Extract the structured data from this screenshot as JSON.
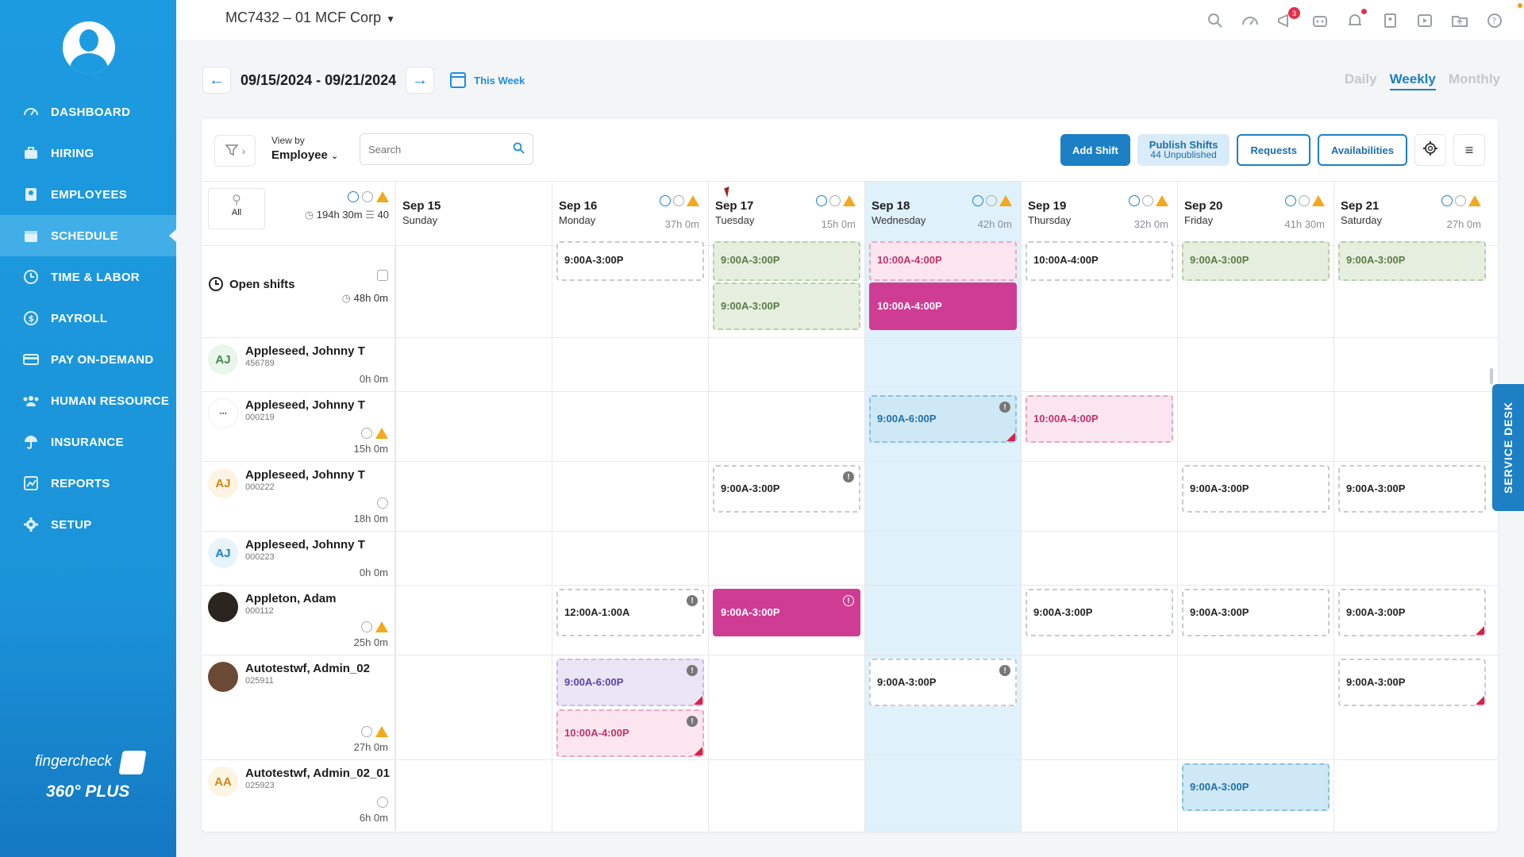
{
  "sidebar": {
    "items": [
      {
        "label": "DASHBOARD",
        "icon": "dashboard-icon"
      },
      {
        "label": "HIRING",
        "icon": "briefcase-icon"
      },
      {
        "label": "EMPLOYEES",
        "icon": "id-card-icon"
      },
      {
        "label": "SCHEDULE",
        "icon": "calendar-icon",
        "active": true
      },
      {
        "label": "TIME & LABOR",
        "icon": "clock-icon"
      },
      {
        "label": "PAYROLL",
        "icon": "dollar-icon"
      },
      {
        "label": "PAY ON-DEMAND",
        "icon": "card-icon"
      },
      {
        "label": "HUMAN RESOURCE",
        "icon": "people-icon"
      },
      {
        "label": "INSURANCE",
        "icon": "umbrella-icon"
      },
      {
        "label": "REPORTS",
        "icon": "chart-icon"
      },
      {
        "label": "SETUP",
        "icon": "gear-icon"
      }
    ],
    "brand": "fingercheck",
    "brand_plan": "360° PLUS"
  },
  "topbar": {
    "company": "MC7432 – 01 MCF Corp",
    "notifications_badge": "3"
  },
  "datenav": {
    "range": "09/15/2024 - 09/21/2024",
    "this_week": "This Week",
    "views": [
      "Daily",
      "Weekly",
      "Monthly"
    ],
    "active_view": "Weekly"
  },
  "toolbar": {
    "view_by_label": "View by",
    "view_by_value": "Employee",
    "search_placeholder": "Search",
    "add_shift": "Add Shift",
    "publish_title": "Publish Shifts",
    "publish_sub": "44 Unpublished",
    "requests": "Requests",
    "availabilities": "Availabilities"
  },
  "summary": {
    "all_label": "All",
    "total_hours": "194h 30m",
    "total_count": "40"
  },
  "days": [
    {
      "date": "Sep 15",
      "weekday": "Sunday",
      "hours": ""
    },
    {
      "date": "Sep 16",
      "weekday": "Monday",
      "hours": "37h 0m"
    },
    {
      "date": "Sep 17",
      "weekday": "Tuesday",
      "hours": "15h 0m"
    },
    {
      "date": "Sep 18",
      "weekday": "Wednesday",
      "hours": "42h 0m"
    },
    {
      "date": "Sep 19",
      "weekday": "Thursday",
      "hours": "32h 0m"
    },
    {
      "date": "Sep 20",
      "weekday": "Friday",
      "hours": "41h 30m"
    },
    {
      "date": "Sep 21",
      "weekday": "Saturday",
      "hours": "27h 0m"
    }
  ],
  "open_shifts": {
    "label": "Open shifts",
    "hours": "48h 0m",
    "shifts": [
      {
        "day": 1,
        "time": "9:00A-3:00P"
      },
      {
        "day": 2,
        "time": "9:00A-3:00P"
      },
      {
        "day": 2,
        "time": "9:00A-3:00P"
      },
      {
        "day": 3,
        "time": "10:00A-4:00P"
      },
      {
        "day": 3,
        "time": "10:00A-4:00P"
      },
      {
        "day": 4,
        "time": "10:00A-4:00P"
      },
      {
        "day": 5,
        "time": "9:00A-3:00P"
      },
      {
        "day": 6,
        "time": "9:00A-3:00P"
      }
    ]
  },
  "employees": [
    {
      "initials": "AJ",
      "name": "Appleseed, Johnny T",
      "id": "456789",
      "hours": "0h 0m"
    },
    {
      "initials": "",
      "name": "Appleseed, Johnny T",
      "id": "000219",
      "hours": "15h 0m"
    },
    {
      "initials": "AJ",
      "name": "Appleseed, Johnny T",
      "id": "000222",
      "hours": "18h 0m"
    },
    {
      "initials": "AJ",
      "name": "Appleseed, Johnny T",
      "id": "000223",
      "hours": "0h 0m"
    },
    {
      "initials": "",
      "name": "Appleton, Adam",
      "id": "000112",
      "hours": "25h 0m"
    },
    {
      "initials": "",
      "name": "Autotestwf, Admin_02",
      "id": "025911",
      "hours": "27h 0m"
    },
    {
      "initials": "AA",
      "name": "Autotestwf, Admin_02_01",
      "id": "025923",
      "hours": "6h 0m"
    }
  ],
  "shifts": {
    "e1_wed": "9:00A-6:00P",
    "e1_thu": "10:00A-4:00P",
    "e2_tue": "9:00A-3:00P",
    "e2_fri": "9:00A-3:00P",
    "e2_sat": "9:00A-3:00P",
    "e4_mon": "12:00A-1:00A",
    "e4_tue": "9:00A-3:00P",
    "e4_thu": "9:00A-3:00P",
    "e4_fri": "9:00A-3:00P",
    "e4_sat": "9:00A-3:00P",
    "e5_mon1": "9:00A-6:00P",
    "e5_mon2": "10:00A-4:00P",
    "e5_wed": "9:00A-3:00P",
    "e5_sat": "9:00A-3:00P",
    "e6_fri": "9:00A-3:00P"
  },
  "service_desk": "SERVICE DESK",
  "colors": {
    "primary": "#1d7fc4",
    "sidebar": "#1d9be0",
    "magenta": "#cf3c93",
    "warning": "#f2a91d"
  }
}
